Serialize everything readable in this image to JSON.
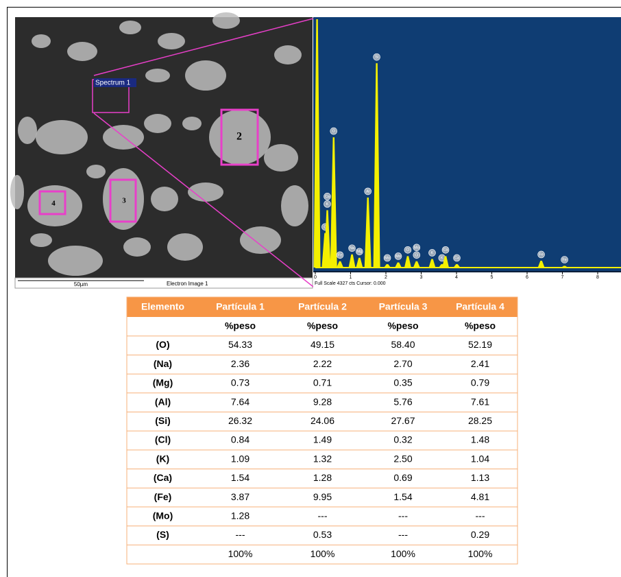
{
  "sem_image": {
    "spectrum_label": "Spectrum 1",
    "particles": [
      "2",
      "3",
      "4"
    ],
    "scale_bar": "50µm",
    "caption": "Electron Image 1"
  },
  "spectrum": {
    "xlim": [
      0,
      8.66
    ],
    "ylim": [
      0,
      4327
    ],
    "xticks": [
      0,
      1,
      2,
      3,
      4,
      5,
      6,
      7,
      8
    ],
    "status": "Full Scale 4327 cts Cursor: 0.000",
    "peaks": [
      {
        "labels": [],
        "energy": 0.05,
        "counts": 4327
      },
      {
        "labels": [
          "C"
        ],
        "energy": 0.28,
        "counts": 600
      },
      {
        "labels": [
          "K",
          "Ca"
        ],
        "energy": 0.34,
        "counts": 1000
      },
      {
        "labels": [
          "O"
        ],
        "energy": 0.52,
        "counts": 2270
      },
      {
        "labels": [
          "Fe"
        ],
        "energy": 0.7,
        "counts": 110
      },
      {
        "labels": [
          "Na"
        ],
        "energy": 1.04,
        "counts": 230
      },
      {
        "labels": [
          "Mg"
        ],
        "energy": 1.25,
        "counts": 170
      },
      {
        "labels": [
          "Al"
        ],
        "energy": 1.49,
        "counts": 1220
      },
      {
        "labels": [
          "Si"
        ],
        "energy": 1.74,
        "counts": 3560
      },
      {
        "labels": [
          "Mo"
        ],
        "energy": 2.04,
        "counts": 60
      },
      {
        "labels": [
          "Mo"
        ],
        "energy": 2.35,
        "counts": 90
      },
      {
        "labels": [
          "Cl"
        ],
        "energy": 2.62,
        "counts": 200
      },
      {
        "labels": [
          "Cl",
          "Mo"
        ],
        "energy": 2.87,
        "counts": 110
      },
      {
        "labels": [
          "K"
        ],
        "energy": 3.31,
        "counts": 150
      },
      {
        "labels": [
          "K"
        ],
        "energy": 3.59,
        "counts": 60
      },
      {
        "labels": [
          "Ca"
        ],
        "energy": 3.69,
        "counts": 200
      },
      {
        "labels": [
          "Ca"
        ],
        "energy": 4.01,
        "counts": 60
      },
      {
        "labels": [
          "Fe"
        ],
        "energy": 6.4,
        "counts": 120
      },
      {
        "labels": [
          "Fe"
        ],
        "energy": 7.06,
        "counts": 30
      }
    ]
  },
  "table": {
    "header": [
      "Elemento",
      "Partícula 1",
      "Partícula 2",
      "Partícula 3",
      "Partícula 4"
    ],
    "subheader": [
      "%peso",
      "%peso",
      "%peso",
      "%peso"
    ],
    "rows": [
      [
        "(O)",
        "54.33",
        "49.15",
        "58.40",
        "52.19"
      ],
      [
        "(Na)",
        "2.36",
        "2.22",
        "2.70",
        "2.41"
      ],
      [
        "(Mg)",
        "0.73",
        "0.71",
        "0.35",
        "0.79"
      ],
      [
        "(Al)",
        "7.64",
        "9.28",
        "5.76",
        "7.61"
      ],
      [
        "(Si)",
        "26.32",
        "24.06",
        "27.67",
        "28.25"
      ],
      [
        "(Cl)",
        "0.84",
        "1.49",
        "0.32",
        "1.48"
      ],
      [
        "(K)",
        "1.09",
        "1.32",
        "2.50",
        "1.04"
      ],
      [
        "(Ca)",
        "1.54",
        "1.28",
        "0.69",
        "1.13"
      ],
      [
        "(Fe)",
        "3.87",
        "9.95",
        "1.54",
        "4.81"
      ],
      [
        "(Mo)",
        "1.28",
        "---",
        "---",
        "---"
      ],
      [
        "(S)",
        "---",
        "0.53",
        "---",
        "0.29"
      ]
    ],
    "totals": [
      "100%",
      "100%",
      "100%",
      "100%"
    ]
  }
}
